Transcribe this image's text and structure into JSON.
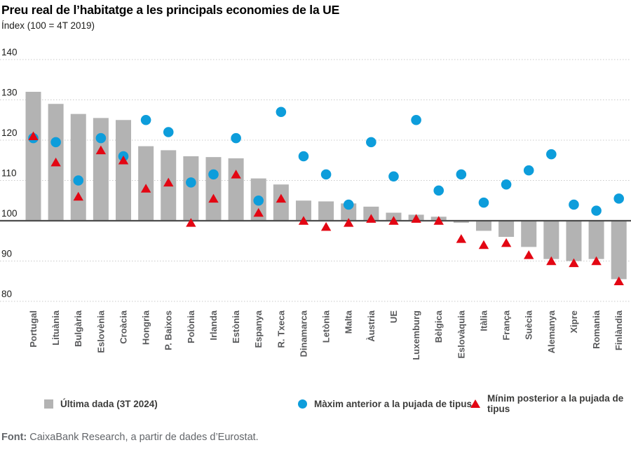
{
  "header": {
    "title": "Preu real de l’habitatge a les principals economies de la UE",
    "subtitle": "Índex (100 = 4T 2019)"
  },
  "footer": {
    "source_label": "Font:",
    "source_text": " CaixaBank Research, a partir de dades d’Eurostat."
  },
  "chart_data": {
    "type": "bar",
    "title": "Preu real de l’habitatge a les principals economies de la UE",
    "subtitle": "Índex (100 = 4T 2019)",
    "baseline": 100,
    "ylim": [
      80,
      140
    ],
    "yticks": [
      80,
      90,
      100,
      110,
      120,
      130,
      140
    ],
    "grid": "dotted-horizontal",
    "legend_position": "bottom",
    "categories": [
      "Portugal",
      "Lituània",
      "Bulgària",
      "Eslovènia",
      "Croàcia",
      "Hongria",
      "P. Baixos",
      "Polònia",
      "Irlanda",
      "Estònia",
      "Espanya",
      "R. Txeca",
      "Dinamarca",
      "Letònia",
      "Malta",
      "Àustria",
      "UE",
      "Luxemburg",
      "Bèlgica",
      "Eslovàquia",
      "Itàlia",
      "França",
      "Suècia",
      "Alemanya",
      "Xipre",
      "Romania",
      "Finlàndia"
    ],
    "series": [
      {
        "name": "Última dada (3T 2024)",
        "type": "bar",
        "color": "#b3b3b3",
        "values": [
          132,
          129,
          126.5,
          125.5,
          125,
          118.5,
          117.5,
          116,
          115.8,
          115.5,
          110.5,
          109,
          105,
          104.8,
          104.3,
          103.5,
          102,
          101.5,
          101,
          99.5,
          97.5,
          96,
          93.5,
          90.5,
          90,
          90.5,
          85.5
        ]
      },
      {
        "name": "Màxim anterior a la pujada de tipus",
        "type": "scatter",
        "marker": "circle",
        "color": "#0d9ddb",
        "values": [
          120.5,
          119.5,
          110,
          120.5,
          116,
          125,
          122,
          109.5,
          111.5,
          120.5,
          105,
          127,
          116,
          111.5,
          104,
          119.5,
          111,
          125,
          107.5,
          111.5,
          104.5,
          109,
          112.5,
          116.5,
          104,
          102.5,
          105.5
        ]
      },
      {
        "name": "Mínim posterior a la pujada de tipus",
        "type": "scatter",
        "marker": "triangle-up",
        "color": "#e30613",
        "values": [
          121,
          114.5,
          106,
          117.5,
          115,
          108,
          109.5,
          99.5,
          105.5,
          111.5,
          102,
          105.5,
          100,
          98.5,
          99.5,
          100.5,
          100,
          100.5,
          100,
          95.5,
          94,
          94.5,
          91.5,
          90,
          89.5,
          90,
          85
        ]
      }
    ],
    "colors": {
      "bar": "#b3b3b3",
      "max_marker": "#0d9ddb",
      "min_marker": "#e30613",
      "gridline": "#c9c9c9",
      "baseline": "#4d4d4d"
    }
  }
}
